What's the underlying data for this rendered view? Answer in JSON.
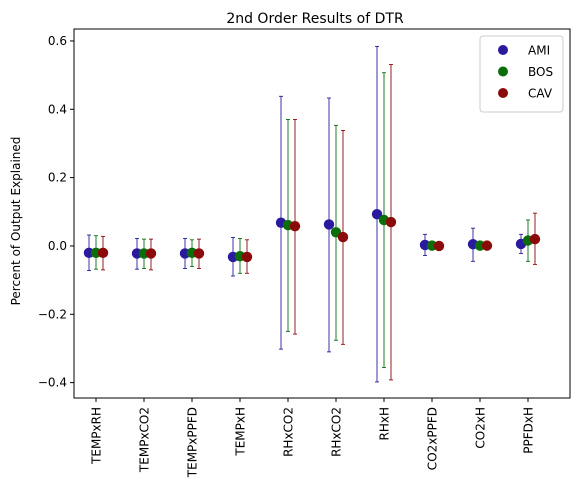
{
  "chart_data": {
    "type": "scatter",
    "title": "2nd Order Results of DTR",
    "xlabel": "",
    "ylabel": "Percent of Output Explained",
    "ylim": [
      -0.445,
      0.635
    ],
    "yticks": [
      "0.6",
      "0.4",
      "0.2",
      "0.0",
      "−0.2",
      "−0.4"
    ],
    "ytick_values": [
      0.6,
      0.4,
      0.2,
      0.0,
      -0.2,
      -0.4
    ],
    "categories": [
      "TEMPxRH",
      "TEMPxCO2",
      "TEMPxPPFD",
      "TEMPxH",
      "RHxCO2",
      "RHxCO2",
      "RHxH",
      "CO2xPPFD",
      "CO2xH",
      "PPFDxH"
    ],
    "legend_position": "top-right",
    "grid": false,
    "series": [
      {
        "name": "AMI",
        "color": "#2a1a9e",
        "values": [
          -0.02,
          -0.022,
          -0.022,
          -0.032,
          0.068,
          0.063,
          0.093,
          0.003,
          0.005,
          0.006
        ],
        "lower": [
          -0.072,
          -0.068,
          -0.066,
          -0.088,
          -0.302,
          -0.31,
          -0.398,
          -0.028,
          -0.045,
          -0.022
        ],
        "upper": [
          0.032,
          0.022,
          0.022,
          0.025,
          0.438,
          0.433,
          0.584,
          0.034,
          0.052,
          0.034
        ]
      },
      {
        "name": "BOS",
        "color": "#0a6e0a",
        "values": [
          -0.02,
          -0.022,
          -0.02,
          -0.03,
          0.061,
          0.04,
          0.076,
          0.001,
          0.001,
          0.016
        ],
        "lower": [
          -0.068,
          -0.066,
          -0.06,
          -0.08,
          -0.25,
          -0.276,
          -0.356,
          -0.006,
          -0.004,
          -0.045
        ],
        "upper": [
          0.03,
          0.02,
          0.018,
          0.022,
          0.37,
          0.353,
          0.507,
          0.004,
          0.007,
          0.076
        ]
      },
      {
        "name": "CAV",
        "color": "#8b0a0a",
        "values": [
          -0.02,
          -0.022,
          -0.022,
          -0.032,
          0.058,
          0.026,
          0.07,
          0.0,
          0.001,
          0.02
        ],
        "lower": [
          -0.07,
          -0.07,
          -0.066,
          -0.08,
          -0.258,
          -0.288,
          -0.392,
          -0.004,
          -0.004,
          -0.054
        ],
        "upper": [
          0.028,
          0.02,
          0.02,
          0.018,
          0.37,
          0.338,
          0.531,
          0.003,
          0.006,
          0.096
        ]
      }
    ]
  }
}
